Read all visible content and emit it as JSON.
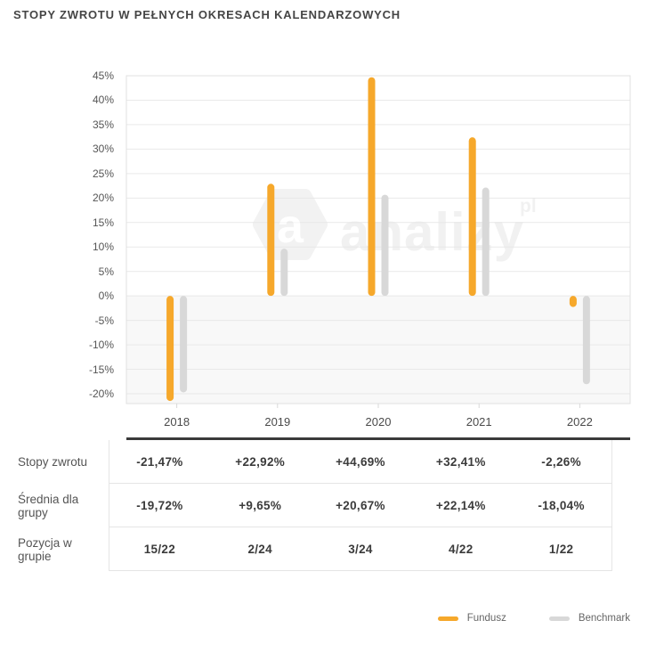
{
  "title": "STOPY ZWROTU W PEŁNYCH OKRESACH KALENDARZOWYCH",
  "watermark": {
    "logo_letter": "a",
    "text": "analizy",
    "suffix": "pl"
  },
  "chart_data": {
    "type": "bar",
    "title": "",
    "categories": [
      "2018",
      "2019",
      "2020",
      "2021",
      "2022"
    ],
    "series": [
      {
        "name": "Fundusz",
        "color": "#F6A82B",
        "values": [
          -21.47,
          22.92,
          44.69,
          32.41,
          -2.26
        ]
      },
      {
        "name": "Benchmark",
        "color": "#D8D8D8",
        "values": [
          -19.72,
          9.65,
          20.67,
          22.14,
          -18.04
        ]
      }
    ],
    "ylim": [
      -22,
      45
    ],
    "y_ticks": [
      45,
      40,
      35,
      30,
      25,
      20,
      15,
      10,
      5,
      0,
      -5,
      -10,
      -15,
      -20
    ],
    "y_tick_suffix": "%",
    "grid": true,
    "negative_region_shaded": true,
    "legend_position": "bottom-right"
  },
  "table": {
    "rows": [
      {
        "label": "Stopy zwrotu",
        "values": [
          "-21,47%",
          "+22,92%",
          "+44,69%",
          "+32,41%",
          "-2,26%"
        ]
      },
      {
        "label": "Średnia dla grupy",
        "values": [
          "-19,72%",
          "+9,65%",
          "+20,67%",
          "+22,14%",
          "-18,04%"
        ]
      },
      {
        "label": "Pozycja w grupie",
        "values": [
          "15/22",
          "2/24",
          "3/24",
          "4/22",
          "1/22"
        ]
      }
    ]
  },
  "legend": {
    "items": [
      {
        "label": "Fundusz",
        "color": "#F6A82B"
      },
      {
        "label": "Benchmark",
        "color": "#D8D8D8"
      }
    ]
  },
  "colors": {
    "grid_line": "#e9e9e9",
    "plot_border": "#e0e0e0",
    "negative_region": "#f8f8f8",
    "axis_tick": "#d8d8d8",
    "table_top_border": "#3a3a3a"
  }
}
